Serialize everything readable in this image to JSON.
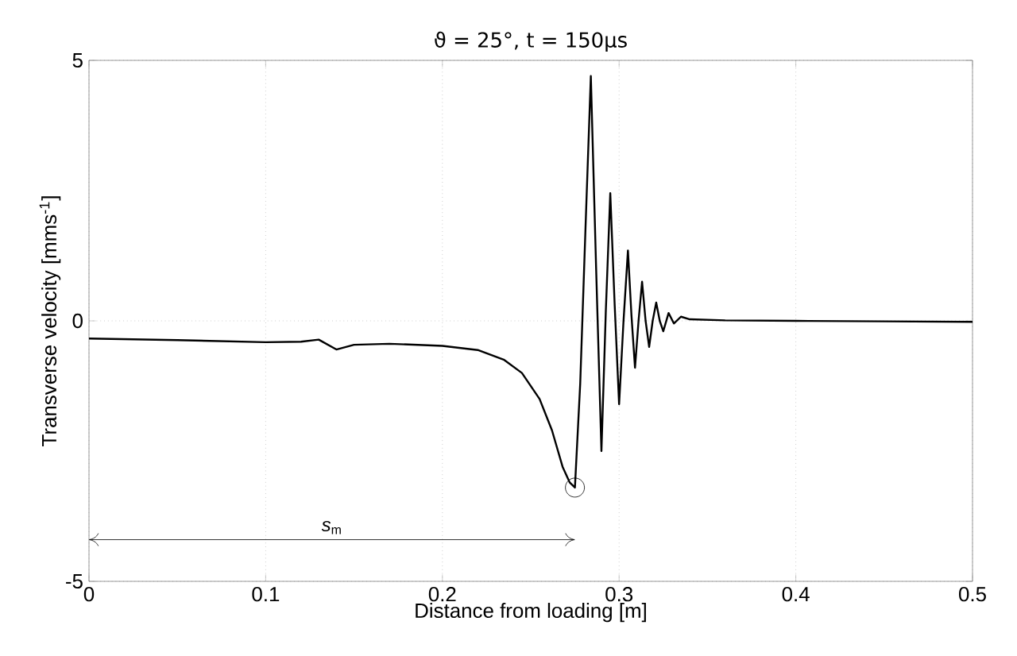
{
  "chart_data": {
    "type": "line",
    "title": "ϑ = 25°, t = 150µs",
    "xlabel": "Distance from loading [m]",
    "ylabel": "Transverse velocity [mms$^{-1}$]",
    "x": [
      0,
      0.05,
      0.1,
      0.12,
      0.13,
      0.14,
      0.15,
      0.17,
      0.2,
      0.22,
      0.235,
      0.245,
      0.255,
      0.262,
      0.268,
      0.272,
      0.275,
      0.278,
      0.281,
      0.284,
      0.287,
      0.29,
      0.2925,
      0.295,
      0.2975,
      0.3,
      0.3025,
      0.305,
      0.307,
      0.309,
      0.311,
      0.313,
      0.315,
      0.317,
      0.319,
      0.321,
      0.323,
      0.325,
      0.328,
      0.331,
      0.335,
      0.34,
      0.36,
      0.4,
      0.45,
      0.5
    ],
    "series": [
      {
        "color": "#000000",
        "values": [
          -0.34,
          -0.37,
          -0.41,
          -0.4,
          -0.36,
          -0.55,
          -0.46,
          -0.44,
          -0.48,
          -0.56,
          -0.75,
          -1.0,
          -1.5,
          -2.1,
          -2.8,
          -3.1,
          -3.2,
          -1.2,
          1.8,
          4.7,
          1.0,
          -2.5,
          0.2,
          2.45,
          0.3,
          -1.6,
          0.0,
          1.35,
          0.1,
          -0.9,
          0.0,
          0.75,
          0.0,
          -0.5,
          0.0,
          0.35,
          0.0,
          -0.2,
          0.15,
          -0.05,
          0.08,
          0.03,
          0.01,
          0.0,
          -0.01,
          -0.02
        ]
      }
    ],
    "xlim": [
      0,
      0.5
    ],
    "ylim": [
      -5,
      5
    ],
    "xticks": [
      0,
      0.1,
      0.2,
      0.3,
      0.4,
      0.5
    ],
    "yticks": [
      -5,
      0,
      5
    ],
    "grid": true,
    "annotations": [
      "*s*$_{m}$"
    ]
  }
}
